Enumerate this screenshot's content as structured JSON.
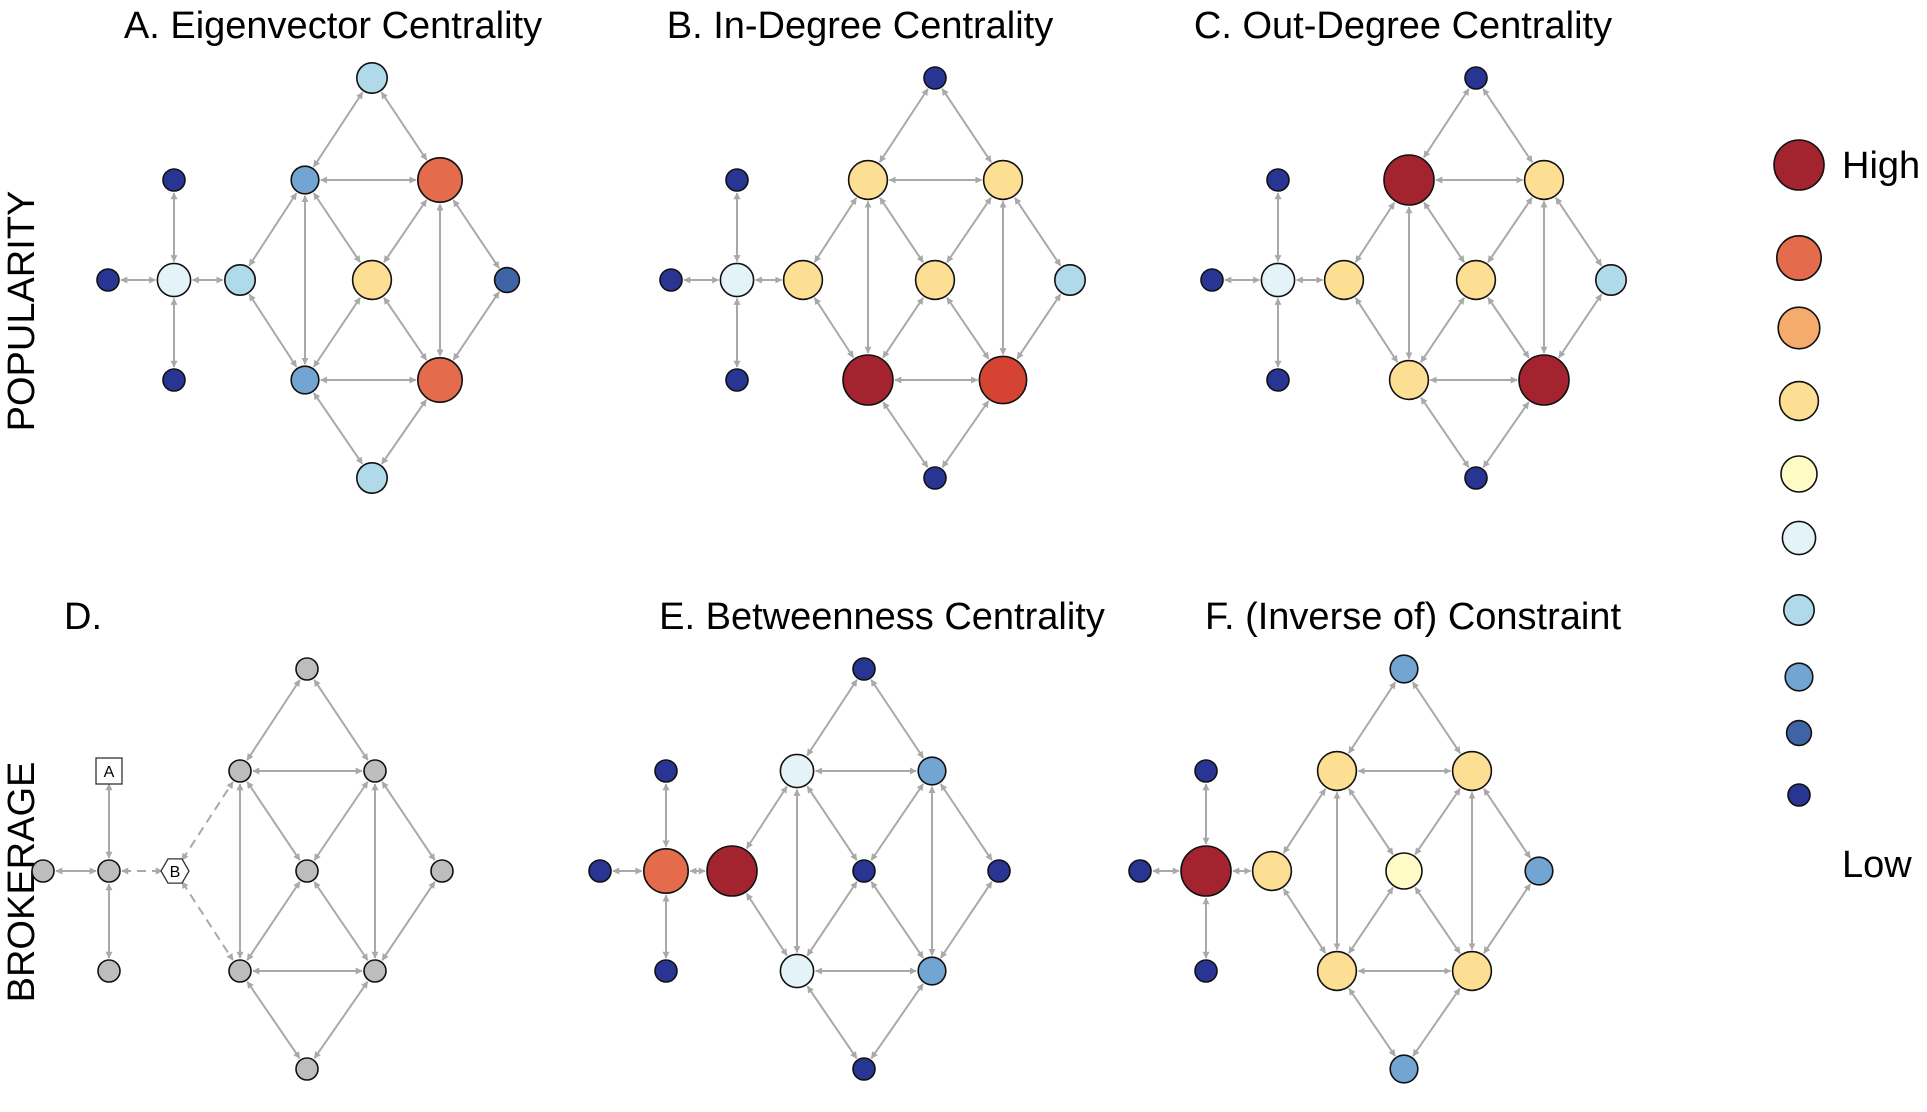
{
  "row_labels": [
    "POPULARITY",
    "BROKERAGE"
  ],
  "panels": [
    {
      "id": "A",
      "title": "A. Eigenvector Centrality",
      "levels": {
        "L1": 2,
        "L2": 2,
        "T": 3,
        "R1": 8,
        "R2": 8,
        "B": 3,
        "M": 6,
        "Rc": 1,
        "X": 3,
        "Lc": 4,
        "LT": 0,
        "LB": 0,
        "LL": 0
      }
    },
    {
      "id": "B",
      "title": "B. In-Degree Centrality",
      "levels": {
        "L1": 6,
        "L2": 10,
        "T": 0,
        "R1": 6,
        "R2": 9,
        "B": 0,
        "M": 6,
        "Rc": 3,
        "X": 6,
        "Lc": 4,
        "LT": 0,
        "LB": 0,
        "LL": 0
      }
    },
    {
      "id": "C",
      "title": "C. Out-Degree Centrality",
      "levels": {
        "L1": 10,
        "L2": 6,
        "T": 0,
        "R1": 6,
        "R2": 10,
        "B": 0,
        "M": 6,
        "Rc": 3,
        "X": 6,
        "Lc": 4,
        "LT": 0,
        "LB": 0,
        "LL": 0
      }
    },
    {
      "id": "D",
      "title": "D.",
      "levels": {},
      "box_labels": {
        "square": "A",
        "hexagon": "B"
      }
    },
    {
      "id": "E",
      "title": "E. Betweenness Centrality",
      "levels": {
        "L1": 4,
        "L2": 4,
        "T": 0,
        "R1": 2,
        "R2": 2,
        "B": 0,
        "M": 0,
        "Rc": 0,
        "X": 10,
        "Lc": 8,
        "LT": 0,
        "LB": 0,
        "LL": 0
      }
    },
    {
      "id": "F",
      "title": "F. (Inverse of) Constraint",
      "levels": {
        "L1": 6,
        "L2": 6,
        "T": 2,
        "R1": 6,
        "R2": 6,
        "B": 2,
        "M": 5,
        "Rc": 2,
        "X": 6,
        "Lc": 10,
        "LT": 0,
        "LB": 0,
        "LL": 0
      }
    }
  ],
  "legend": {
    "high_label": "High",
    "low_label": "Low",
    "levels": [
      10,
      8,
      7,
      6,
      5,
      4,
      3,
      2,
      1,
      0
    ]
  },
  "palette": [
    "#283593",
    "#3f64a6",
    "#72a5d2",
    "#b0d9ea",
    "#e4f3f8",
    "#fefbc6",
    "#fddf94",
    "#f5ab6c",
    "#e46c4c",
    "#d54333",
    "#a3232f"
  ],
  "neutral_color": "#bdbdbd"
}
